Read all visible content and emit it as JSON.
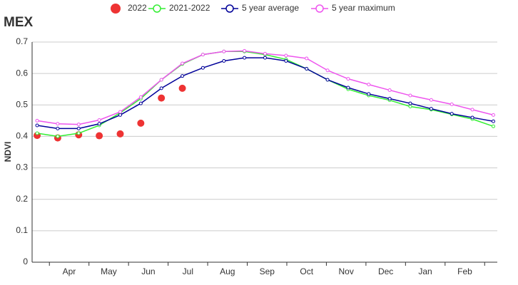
{
  "chart_data": {
    "type": "line",
    "title": "MEX",
    "y_label": "NDVI",
    "x": [
      0.19,
      0.71,
      1.24,
      1.76,
      2.29,
      2.81,
      3.33,
      3.86,
      4.38,
      4.91,
      5.43,
      5.95,
      6.48,
      7.0,
      7.53,
      8.05,
      8.57,
      9.1,
      9.62,
      10.15,
      10.67,
      11.19,
      11.72
    ],
    "xlim": [
      0.063,
      11.82
    ],
    "xticks": [
      {
        "value": 1,
        "label": "Apr"
      },
      {
        "value": 2,
        "label": "May"
      },
      {
        "value": 3,
        "label": "Jun"
      },
      {
        "value": 4,
        "label": "Jul"
      },
      {
        "value": 5,
        "label": "Aug"
      },
      {
        "value": 6,
        "label": "Sep"
      },
      {
        "value": 7,
        "label": "Oct"
      },
      {
        "value": 8,
        "label": "Nov"
      },
      {
        "value": 9,
        "label": "Dec"
      },
      {
        "value": 10,
        "label": "Jan"
      },
      {
        "value": 11,
        "label": "Feb"
      }
    ],
    "ylim": [
      0,
      0.7
    ],
    "yticks": [
      0,
      0.1,
      0.2,
      0.3,
      0.4,
      0.5,
      0.6,
      0.7
    ],
    "grid": true,
    "series": [
      {
        "name": "2022",
        "color": "#ee3333",
        "mode": "markers",
        "values": [
          0.403,
          0.395,
          0.405,
          0.402,
          0.408,
          0.442,
          0.522,
          0.553,
          null,
          null,
          null,
          null,
          null,
          null,
          null,
          null,
          null,
          null,
          null,
          null,
          null,
          null,
          null
        ]
      },
      {
        "name": "2021-2022",
        "color": "#33ee33",
        "mode": "lines",
        "values": [
          0.41,
          0.4,
          0.41,
          0.435,
          0.475,
          0.52,
          0.58,
          0.63,
          0.66,
          0.67,
          0.67,
          0.66,
          0.645,
          0.615,
          0.58,
          0.55,
          0.53,
          0.515,
          0.495,
          0.485,
          0.47,
          0.455,
          0.432
        ]
      },
      {
        "name": "5 year average",
        "color": "#000099",
        "mode": "lines",
        "values": [
          0.435,
          0.425,
          0.425,
          0.44,
          0.468,
          0.505,
          0.553,
          0.592,
          0.618,
          0.64,
          0.65,
          0.65,
          0.64,
          0.615,
          0.58,
          0.555,
          0.535,
          0.52,
          0.505,
          0.488,
          0.472,
          0.46,
          0.448
        ]
      },
      {
        "name": "5 year maximum",
        "color": "#ee55ee",
        "mode": "lines",
        "values": [
          0.45,
          0.44,
          0.438,
          0.452,
          0.478,
          0.525,
          0.58,
          0.632,
          0.66,
          0.67,
          0.672,
          0.663,
          0.657,
          0.648,
          0.61,
          0.583,
          0.565,
          0.547,
          0.53,
          0.516,
          0.502,
          0.485,
          0.468
        ]
      }
    ]
  }
}
